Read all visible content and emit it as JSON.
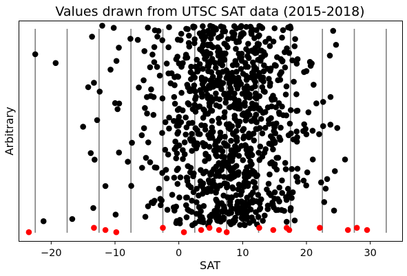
{
  "chart_data": {
    "type": "scatter",
    "title": "Values drawn from UTSC SAT data (2015-2018)",
    "xlabel": "SAT",
    "ylabel": "Arbitrary",
    "xlim": [
      -25,
      35
    ],
    "ylim": [
      0,
      1
    ],
    "x_ticks": [
      -20,
      -10,
      0,
      10,
      20,
      30
    ],
    "x_tick_labels": [
      "−20",
      "−10",
      "0",
      "10",
      "20",
      "30"
    ],
    "y_ticks": [],
    "grid": false,
    "legend": "none",
    "vertical_lines": {
      "x": [
        -22.5,
        -17.5,
        -12.5,
        -7.5,
        -2.5,
        2.5,
        7.5,
        12.5,
        17.5,
        22.5,
        27.5,
        32.5
      ],
      "color": "#808080"
    },
    "colors": {
      "points": "#000000",
      "highlighted": "#ff0000",
      "lines": "#808080"
    },
    "highlighted_points": {
      "x": [
        -23.5,
        -13.3,
        -11.5,
        -9.8,
        -2.5,
        0.8,
        3.5,
        4.8,
        6.3,
        7.5,
        12.6,
        14.8,
        16.9,
        17.3,
        22.1,
        26.5,
        27.9,
        29.5
      ],
      "y": [
        0.04,
        0.06,
        0.05,
        0.04,
        0.06,
        0.04,
        0.05,
        0.06,
        0.05,
        0.04,
        0.06,
        0.05,
        0.06,
        0.05,
        0.06,
        0.05,
        0.06,
        0.05
      ]
    },
    "points": {
      "n_approx": 1000,
      "x": [
        -22.5,
        -19.3,
        -21.2,
        -16.7,
        -15.0,
        -14.2,
        -13.8,
        -13.6,
        -13.4,
        -13.3,
        -13.2,
        -12.8,
        -12.4,
        -12.0,
        -11.5,
        -10.7,
        -10.2,
        -9.9,
        -9.6,
        -9.4
      ],
      "y": [
        0.85,
        0.81,
        0.09,
        0.1,
        0.52,
        0.7,
        0.4,
        0.93,
        0.15,
        0.72,
        0.37,
        0.55,
        0.68,
        0.98,
        0.25,
        0.78,
        0.97,
        0.12,
        0.6,
        0.88
      ]
    }
  }
}
